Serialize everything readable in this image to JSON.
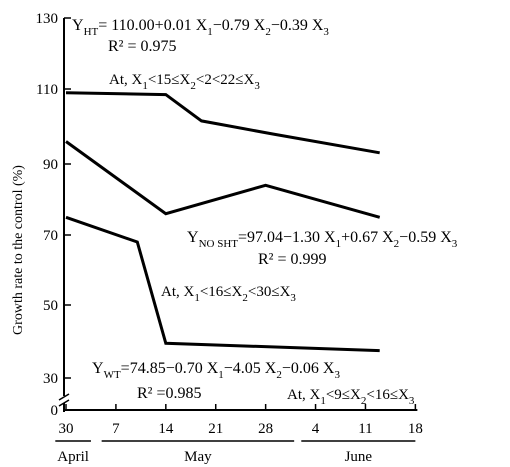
{
  "chart_data": {
    "type": "line",
    "ylabel": "Growth rate to the control (%)",
    "ylim": [
      0,
      130
    ],
    "y_ticks": [
      0,
      30,
      50,
      70,
      90,
      110,
      130
    ],
    "y_axis_break": true,
    "x_ticks": [
      {
        "label": "30",
        "day": 0
      },
      {
        "label": "7",
        "day": 7
      },
      {
        "label": "14",
        "day": 14
      },
      {
        "label": "21",
        "day": 21
      },
      {
        "label": "28",
        "day": 28
      },
      {
        "label": "4",
        "day": 35
      },
      {
        "label": "11",
        "day": 42
      },
      {
        "label": "18",
        "day": 49
      }
    ],
    "months": [
      {
        "label": "April",
        "from": -1.5,
        "to": 3.5
      },
      {
        "label": "May",
        "from": 5,
        "to": 32
      },
      {
        "label": "June",
        "from": 33,
        "to": 49
      }
    ],
    "grid": false,
    "legend": "none",
    "series": [
      {
        "x": [
          "April 30",
          "May 14",
          "May 19",
          "May 29",
          "June 13"
        ],
        "y": [
          109,
          108.5,
          101.5,
          98,
          93
        ]
      },
      {
        "x": [
          "April 30",
          "May 14",
          "May 28",
          "June 13"
        ],
        "y": [
          96,
          76,
          84,
          75
        ]
      },
      {
        "x": [
          "April 30",
          "May 10",
          "May 14",
          "June 13"
        ],
        "y": [
          75,
          68,
          39.5,
          37.5
        ]
      }
    ],
    "annotations": [
      {
        "id": "ht",
        "y_main": "Y",
        "y_sub": "HT",
        "equation": "= 110.00+0.01 X",
        "terms": [
          {
            "text": "= 110.00+0.01 X",
            "sub": "1"
          },
          {
            "text": "−0.79 X",
            "sub": "2"
          },
          {
            "text": "−0.39 X",
            "sub": "3"
          }
        ],
        "r2": "R² = 0.975",
        "cond_prefix": "At, X",
        "cond_terms": [
          {
            "sub": "1",
            "text": "<15≤X"
          },
          {
            "sub": "2",
            "text": "<2<22≤X"
          },
          {
            "sub": "3",
            "text": ""
          }
        ]
      },
      {
        "id": "noshT",
        "y_main": "Y",
        "y_sub": "NO SHT",
        "terms": [
          {
            "text": "=97.04−1.30 X",
            "sub": "1"
          },
          {
            "text": "+0.67 X",
            "sub": "2"
          },
          {
            "text": "−0.59 X",
            "sub": "3"
          }
        ],
        "r2": "R² = 0.999",
        "cond_prefix": "At, X",
        "cond_terms": [
          {
            "sub": "1",
            "text": "<16≤X"
          },
          {
            "sub": "2",
            "text": "<30≤X"
          },
          {
            "sub": "3",
            "text": ""
          }
        ]
      },
      {
        "id": "wt",
        "y_main": "Y",
        "y_sub": "WT",
        "terms": [
          {
            "text": "=74.85−0.70 X",
            "sub": "1"
          },
          {
            "text": "−4.05 X",
            "sub": "2"
          },
          {
            "text": "−0.06 X",
            "sub": "3"
          }
        ],
        "r2": "R² =0.985",
        "cond_prefix": "At,  X",
        "cond_terms": [
          {
            "sub": "1",
            "text": "<9≤X"
          },
          {
            "sub": "2",
            "text": "<16≤X"
          },
          {
            "sub": "3",
            "text": ""
          }
        ]
      }
    ]
  }
}
